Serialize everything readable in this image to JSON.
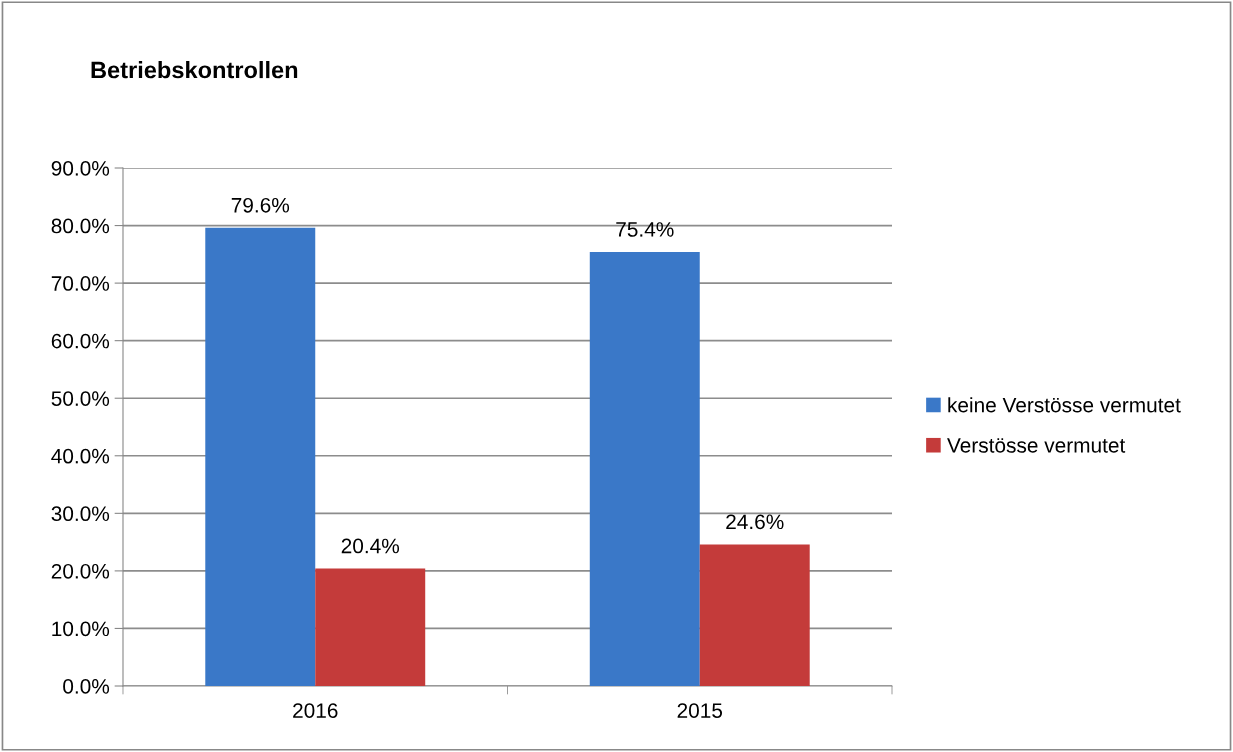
{
  "chart_data": {
    "type": "bar",
    "title": "Betriebskontrollen",
    "categories": [
      "2016",
      "2015"
    ],
    "series": [
      {
        "name": "keine Verstösse vermutet",
        "color": "#3a78c8",
        "values": [
          79.6,
          75.4
        ],
        "value_labels": [
          "79.6%",
          "75.4%"
        ]
      },
      {
        "name": "Verstösse vermutet",
        "color": "#c43b3a",
        "values": [
          20.4,
          24.6
        ],
        "value_labels": [
          "20.4%",
          "24.6%"
        ]
      }
    ],
    "ylim": [
      0,
      90
    ],
    "yticks": [
      {
        "value": 0,
        "label": "0.0%"
      },
      {
        "value": 10,
        "label": "10.0%"
      },
      {
        "value": 20,
        "label": "20.0%"
      },
      {
        "value": 30,
        "label": "30.0%"
      },
      {
        "value": 40,
        "label": "40.0%"
      },
      {
        "value": 50,
        "label": "50.0%"
      },
      {
        "value": 60,
        "label": "60.0%"
      },
      {
        "value": 70,
        "label": "70.0%"
      },
      {
        "value": 80,
        "label": "80.0%"
      },
      {
        "value": 90,
        "label": "90.0%"
      }
    ],
    "grid": "y",
    "legend": "right"
  }
}
